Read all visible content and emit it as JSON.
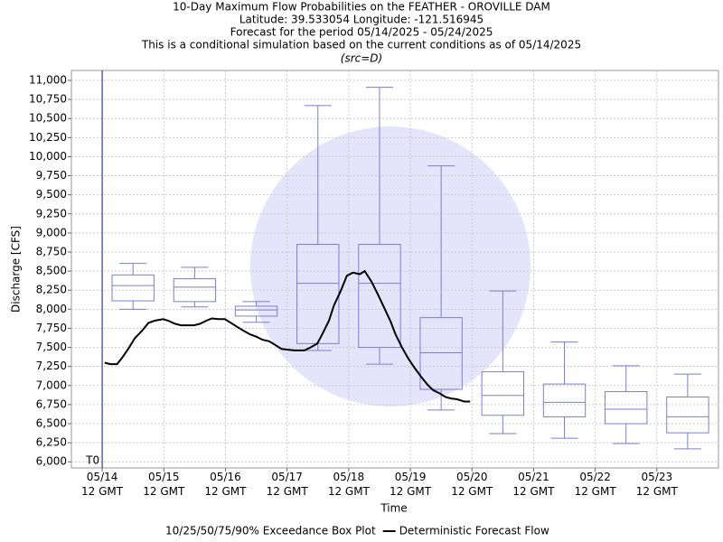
{
  "chart_data": {
    "type": "box",
    "title": "10-Day Maximum Flow Probabilities on the FEATHER - OROVILLE DAM",
    "subtitle_lines": [
      "Latitude: 39.533054 Longitude: -121.516945",
      "Forecast for the period 05/14/2025 - 05/24/2025",
      "This is a conditional simulation based on the current conditions as of 05/14/2025"
    ],
    "source": "(src=D)",
    "y_label": "Discharge [CFS]",
    "x_label": "Time",
    "t0": {
      "value": 0,
      "label": "T0"
    },
    "grid": true,
    "xlim": [
      -0.5,
      10
    ],
    "xticks": [
      {
        "value": 0,
        "label": "05/14 12 GMT"
      },
      {
        "value": 1,
        "label": "05/15 12 GMT"
      },
      {
        "value": 2,
        "label": "05/16 12 GMT"
      },
      {
        "value": 3,
        "label": "05/17 12 GMT"
      },
      {
        "value": 4,
        "label": "05/18 12 GMT"
      },
      {
        "value": 5,
        "label": "05/19 12 GMT"
      },
      {
        "value": 6,
        "label": "05/20 12 GMT"
      },
      {
        "value": 7,
        "label": "05/21 12 GMT"
      },
      {
        "value": 8,
        "label": "05/22 12 GMT"
      },
      {
        "value": 9,
        "label": "05/23 12 GMT"
      }
    ],
    "ylim": [
      5920,
      11130
    ],
    "yticks": [
      {
        "value": 6000,
        "label": "6,000"
      },
      {
        "value": 6250,
        "label": "6,250"
      },
      {
        "value": 6500,
        "label": "6,500"
      },
      {
        "value": 6750,
        "label": "6,750"
      },
      {
        "value": 7000,
        "label": "7,000"
      },
      {
        "value": 7250,
        "label": "7,250"
      },
      {
        "value": 7500,
        "label": "7,500"
      },
      {
        "value": 7750,
        "label": "7,750"
      },
      {
        "value": 8000,
        "label": "8,000"
      },
      {
        "value": 8250,
        "label": "8,250"
      },
      {
        "value": 8500,
        "label": "8,500"
      },
      {
        "value": 8750,
        "label": "8,750"
      },
      {
        "value": 9000,
        "label": "9,000"
      },
      {
        "value": 9250,
        "label": "9,250"
      },
      {
        "value": 9500,
        "label": "9,500"
      },
      {
        "value": 9750,
        "label": "9,750"
      },
      {
        "value": 10000,
        "label": "10,000"
      },
      {
        "value": 10250,
        "label": "10,250"
      },
      {
        "value": 10500,
        "label": "10,500"
      },
      {
        "value": 10750,
        "label": "10,750"
      },
      {
        "value": 11000,
        "label": "11,000"
      }
    ],
    "series": [
      {
        "name": "10/25/50/75/90% Exceedance Box Plot",
        "type": "box",
        "color": "#7c7cd8",
        "x": [
          0.5,
          1.5,
          2.5,
          3.5,
          4.5,
          5.5,
          6.5,
          7.5,
          8.5,
          9.5
        ],
        "low": [
          8000,
          8030,
          7830,
          7460,
          7280,
          6680,
          6370,
          6310,
          6240,
          6170
        ],
        "q1": [
          8110,
          8100,
          7910,
          7550,
          7500,
          6950,
          6610,
          6590,
          6500,
          6380
        ],
        "median": [
          8310,
          8290,
          7990,
          8340,
          8340,
          7430,
          6870,
          6780,
          6690,
          6590
        ],
        "q3": [
          8450,
          8400,
          8040,
          8850,
          8850,
          7890,
          7180,
          7020,
          6920,
          6850
        ],
        "high": [
          8600,
          8550,
          8100,
          10670,
          10910,
          9880,
          8240,
          7570,
          7260,
          7150
        ]
      },
      {
        "name": "Deterministic Forecast Flow",
        "type": "line",
        "color": "#000000",
        "x": [
          0.04,
          0.13,
          0.24,
          0.32,
          0.43,
          0.53,
          0.65,
          0.75,
          0.85,
          0.99,
          1.07,
          1.18,
          1.28,
          1.49,
          1.59,
          1.69,
          1.78,
          1.88,
          1.99,
          2.09,
          2.19,
          2.29,
          2.4,
          2.5,
          2.6,
          2.71,
          2.81,
          2.91,
          3.01,
          3.12,
          3.28,
          3.38,
          3.49,
          3.57,
          3.68,
          3.76,
          3.87,
          3.97,
          4.07,
          4.18,
          4.26,
          4.37,
          4.47,
          4.57,
          4.68,
          4.76,
          4.87,
          4.97,
          5.07,
          5.18,
          5.28,
          5.37,
          5.47,
          5.57,
          5.66,
          5.76,
          5.87,
          5.97
        ],
        "values": [
          7300,
          7280,
          7280,
          7360,
          7490,
          7620,
          7720,
          7820,
          7850,
          7870,
          7850,
          7810,
          7790,
          7790,
          7810,
          7850,
          7880,
          7870,
          7870,
          7820,
          7770,
          7720,
          7670,
          7640,
          7600,
          7580,
          7530,
          7480,
          7470,
          7460,
          7460,
          7500,
          7550,
          7670,
          7850,
          8050,
          8240,
          8440,
          8480,
          8460,
          8500,
          8360,
          8200,
          8030,
          7840,
          7670,
          7490,
          7350,
          7230,
          7110,
          7010,
          6940,
          6900,
          6850,
          6830,
          6820,
          6790,
          6790
        ]
      }
    ]
  }
}
